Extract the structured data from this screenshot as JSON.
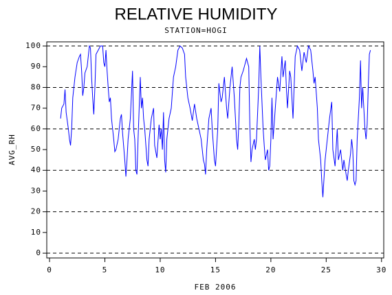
{
  "chart_data": {
    "type": "line",
    "title": "RELATIVE HUMIDITY",
    "subtitle": "STATION=HOGI",
    "xlabel": "FEB 2006",
    "ylabel": "AVG_RH",
    "xlim": [
      -0.25,
      30.2
    ],
    "ylim": [
      -2.3,
      102
    ],
    "xticks": [
      0,
      5,
      10,
      15,
      20,
      25,
      30
    ],
    "yticks": [
      0,
      10,
      20,
      30,
      40,
      50,
      60,
      70,
      80,
      90,
      100
    ],
    "grid_lines": [
      0,
      20,
      40,
      60,
      80,
      100
    ],
    "series": [
      {
        "name": "AVG_RH",
        "color": "#0000ff",
        "x": [
          1.0,
          1.1,
          1.3,
          1.4,
          1.5,
          1.7,
          1.8,
          1.9,
          2.0,
          2.1,
          2.3,
          2.5,
          2.7,
          2.8,
          2.9,
          3.0,
          3.1,
          3.2,
          3.4,
          3.5,
          3.6,
          3.7,
          3.8,
          3.9,
          4.0,
          4.1,
          4.2,
          4.4,
          4.6,
          4.8,
          4.9,
          5.0,
          5.1,
          5.2,
          5.3,
          5.4,
          5.5,
          5.6,
          5.8,
          5.9,
          6.0,
          6.2,
          6.4,
          6.5,
          6.6,
          6.8,
          6.9,
          7.0,
          7.1,
          7.3,
          7.5,
          7.6,
          7.7,
          7.8,
          7.9,
          8.0,
          8.2,
          8.3,
          8.4,
          8.5,
          8.6,
          8.8,
          8.9,
          9.0,
          9.2,
          9.4,
          9.5,
          9.7,
          9.9,
          10.0,
          10.1,
          10.2,
          10.3,
          10.4,
          10.5,
          10.6,
          10.8,
          11.0,
          11.2,
          11.4,
          11.6,
          11.8,
          12.0,
          12.2,
          12.3,
          12.5,
          12.7,
          12.9,
          13.1,
          13.3,
          13.5,
          13.7,
          13.9,
          14.0,
          14.1,
          14.2,
          14.4,
          14.6,
          14.7,
          14.9,
          15.0,
          15.2,
          15.3,
          15.5,
          15.6,
          15.8,
          16.0,
          16.1,
          16.3,
          16.5,
          16.7,
          16.9,
          17.0,
          17.1,
          17.2,
          17.3,
          17.5,
          17.7,
          17.8,
          18.0,
          18.1,
          18.2,
          18.3,
          18.5,
          18.6,
          18.7,
          18.9,
          19.0,
          19.1,
          19.3,
          19.4,
          19.5,
          19.7,
          19.8,
          19.9,
          20.0,
          20.1,
          20.2,
          20.4,
          20.6,
          20.8,
          21.0,
          21.1,
          21.3,
          21.4,
          21.5,
          21.7,
          21.8,
          22.0,
          22.2,
          22.4,
          22.6,
          22.8,
          23.0,
          23.2,
          23.4,
          23.6,
          23.8,
          23.9,
          24.0,
          24.2,
          24.3,
          24.5,
          24.6,
          24.7,
          24.9,
          25.1,
          25.3,
          25.5,
          25.6,
          25.8,
          26.0,
          26.1,
          26.3,
          26.5,
          26.6,
          26.8,
          26.9,
          27.0,
          27.2,
          27.3,
          27.4,
          27.5,
          27.6,
          27.7,
          27.8,
          28.0,
          28.1,
          28.2,
          28.3,
          28.5,
          28.6,
          28.7,
          28.8,
          28.9,
          29.0
        ],
        "values": [
          65,
          70,
          72,
          79,
          68,
          60,
          55,
          52,
          60,
          75,
          85,
          92,
          95,
          96,
          88,
          76,
          80,
          87,
          90,
          95,
          100,
          99,
          85,
          75,
          67,
          80,
          96,
          98,
          100,
          100,
          92,
          90,
          98,
          88,
          80,
          73,
          75,
          65,
          55,
          49,
          50,
          55,
          65,
          67,
          58,
          45,
          37,
          45,
          55,
          65,
          88,
          60,
          55,
          40,
          38,
          55,
          85,
          70,
          75,
          65,
          60,
          45,
          42,
          55,
          65,
          70,
          52,
          46,
          62,
          55,
          60,
          50,
          68,
          45,
          39,
          55,
          65,
          70,
          85,
          90,
          98,
          100,
          99,
          96,
          85,
          75,
          70,
          64,
          72,
          65,
          60,
          55,
          45,
          43,
          38,
          50,
          65,
          70,
          60,
          45,
          42,
          60,
          82,
          73,
          75,
          85,
          70,
          65,
          80,
          90,
          75,
          55,
          50,
          62,
          80,
          85,
          88,
          92,
          94,
          90,
          62,
          44,
          50,
          55,
          50,
          55,
          80,
          100,
          85,
          60,
          52,
          45,
          50,
          40,
          42,
          55,
          75,
          55,
          70,
          85,
          78,
          95,
          85,
          93,
          80,
          70,
          88,
          85,
          65,
          95,
          100,
          98,
          88,
          97,
          92,
          100,
          98,
          88,
          82,
          85,
          70,
          55,
          45,
          35,
          27,
          45,
          55,
          65,
          73,
          50,
          42,
          60,
          45,
          50,
          40,
          45,
          38,
          35,
          40,
          48,
          55,
          50,
          35,
          33,
          35,
          55,
          75,
          93,
          70,
          80,
          60,
          55,
          62,
          80,
          96,
          98
        ]
      }
    ]
  }
}
